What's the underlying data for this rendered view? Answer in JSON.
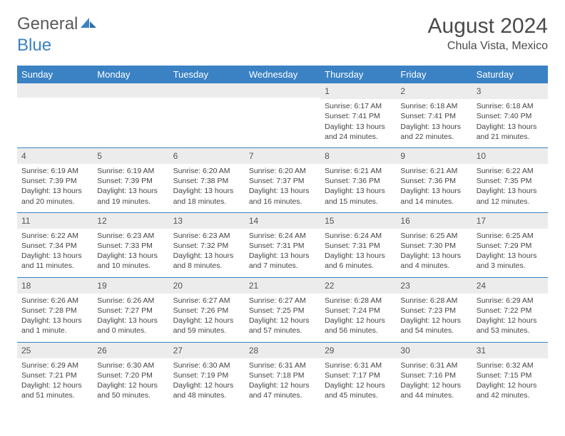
{
  "logo": {
    "word1": "General",
    "word2": "Blue"
  },
  "title": "August 2024",
  "location": "Chula Vista, Mexico",
  "colors": {
    "header_bg": "#3b82c4",
    "header_text": "#ffffff",
    "daynum_bg": "#ececec",
    "rule": "#3b82c4",
    "text": "#444444",
    "title_text": "#4a4a4a"
  },
  "typography": {
    "title_size_pt": 22,
    "location_size_pt": 12,
    "header_size_pt": 10,
    "cell_size_pt": 8
  },
  "dayHeaders": [
    "Sunday",
    "Monday",
    "Tuesday",
    "Wednesday",
    "Thursday",
    "Friday",
    "Saturday"
  ],
  "weeks": [
    [
      {
        "blank": true
      },
      {
        "blank": true
      },
      {
        "blank": true
      },
      {
        "blank": true
      },
      {
        "n": "1",
        "sr": "6:17 AM",
        "ss": "7:41 PM",
        "dl": "13 hours and 24 minutes."
      },
      {
        "n": "2",
        "sr": "6:18 AM",
        "ss": "7:41 PM",
        "dl": "13 hours and 22 minutes."
      },
      {
        "n": "3",
        "sr": "6:18 AM",
        "ss": "7:40 PM",
        "dl": "13 hours and 21 minutes."
      }
    ],
    [
      {
        "n": "4",
        "sr": "6:19 AM",
        "ss": "7:39 PM",
        "dl": "13 hours and 20 minutes."
      },
      {
        "n": "5",
        "sr": "6:19 AM",
        "ss": "7:39 PM",
        "dl": "13 hours and 19 minutes."
      },
      {
        "n": "6",
        "sr": "6:20 AM",
        "ss": "7:38 PM",
        "dl": "13 hours and 18 minutes."
      },
      {
        "n": "7",
        "sr": "6:20 AM",
        "ss": "7:37 PM",
        "dl": "13 hours and 16 minutes."
      },
      {
        "n": "8",
        "sr": "6:21 AM",
        "ss": "7:36 PM",
        "dl": "13 hours and 15 minutes."
      },
      {
        "n": "9",
        "sr": "6:21 AM",
        "ss": "7:36 PM",
        "dl": "13 hours and 14 minutes."
      },
      {
        "n": "10",
        "sr": "6:22 AM",
        "ss": "7:35 PM",
        "dl": "13 hours and 12 minutes."
      }
    ],
    [
      {
        "n": "11",
        "sr": "6:22 AM",
        "ss": "7:34 PM",
        "dl": "13 hours and 11 minutes."
      },
      {
        "n": "12",
        "sr": "6:23 AM",
        "ss": "7:33 PM",
        "dl": "13 hours and 10 minutes."
      },
      {
        "n": "13",
        "sr": "6:23 AM",
        "ss": "7:32 PM",
        "dl": "13 hours and 8 minutes."
      },
      {
        "n": "14",
        "sr": "6:24 AM",
        "ss": "7:31 PM",
        "dl": "13 hours and 7 minutes."
      },
      {
        "n": "15",
        "sr": "6:24 AM",
        "ss": "7:31 PM",
        "dl": "13 hours and 6 minutes."
      },
      {
        "n": "16",
        "sr": "6:25 AM",
        "ss": "7:30 PM",
        "dl": "13 hours and 4 minutes."
      },
      {
        "n": "17",
        "sr": "6:25 AM",
        "ss": "7:29 PM",
        "dl": "13 hours and 3 minutes."
      }
    ],
    [
      {
        "n": "18",
        "sr": "6:26 AM",
        "ss": "7:28 PM",
        "dl": "13 hours and 1 minute."
      },
      {
        "n": "19",
        "sr": "6:26 AM",
        "ss": "7:27 PM",
        "dl": "13 hours and 0 minutes."
      },
      {
        "n": "20",
        "sr": "6:27 AM",
        "ss": "7:26 PM",
        "dl": "12 hours and 59 minutes."
      },
      {
        "n": "21",
        "sr": "6:27 AM",
        "ss": "7:25 PM",
        "dl": "12 hours and 57 minutes."
      },
      {
        "n": "22",
        "sr": "6:28 AM",
        "ss": "7:24 PM",
        "dl": "12 hours and 56 minutes."
      },
      {
        "n": "23",
        "sr": "6:28 AM",
        "ss": "7:23 PM",
        "dl": "12 hours and 54 minutes."
      },
      {
        "n": "24",
        "sr": "6:29 AM",
        "ss": "7:22 PM",
        "dl": "12 hours and 53 minutes."
      }
    ],
    [
      {
        "n": "25",
        "sr": "6:29 AM",
        "ss": "7:21 PM",
        "dl": "12 hours and 51 minutes."
      },
      {
        "n": "26",
        "sr": "6:30 AM",
        "ss": "7:20 PM",
        "dl": "12 hours and 50 minutes."
      },
      {
        "n": "27",
        "sr": "6:30 AM",
        "ss": "7:19 PM",
        "dl": "12 hours and 48 minutes."
      },
      {
        "n": "28",
        "sr": "6:31 AM",
        "ss": "7:18 PM",
        "dl": "12 hours and 47 minutes."
      },
      {
        "n": "29",
        "sr": "6:31 AM",
        "ss": "7:17 PM",
        "dl": "12 hours and 45 minutes."
      },
      {
        "n": "30",
        "sr": "6:31 AM",
        "ss": "7:16 PM",
        "dl": "12 hours and 44 minutes."
      },
      {
        "n": "31",
        "sr": "6:32 AM",
        "ss": "7:15 PM",
        "dl": "12 hours and 42 minutes."
      }
    ]
  ],
  "labels": {
    "sunrise": "Sunrise: ",
    "sunset": "Sunset: ",
    "daylight": "Daylight: "
  }
}
